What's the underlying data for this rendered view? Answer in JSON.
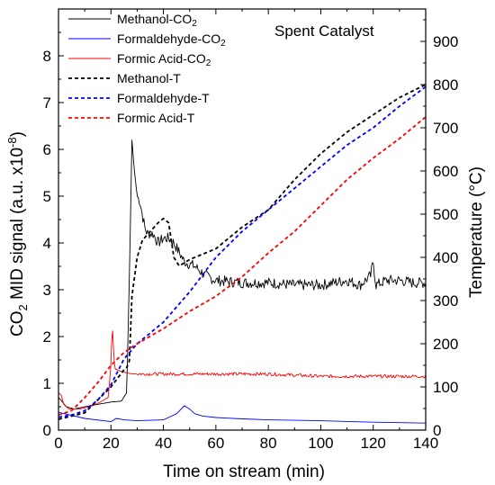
{
  "chart_data": {
    "type": "line",
    "annotation": "Spent Catalyst",
    "xlabel": "Time on stream (min)",
    "ylabel_left_main": "CO",
    "ylabel_left_sub": "2",
    "ylabel_left_rest": " MID signal (a.u. x10",
    "ylabel_left_sup": "-8",
    "ylabel_left_close": ")",
    "ylabel_right": "Temperature (°C)",
    "xlim": [
      0,
      140
    ],
    "ylim_left": [
      0,
      9
    ],
    "ylim_right": [
      0,
      975
    ],
    "x_ticks": [
      0,
      20,
      40,
      60,
      80,
      100,
      120,
      140
    ],
    "y_left_ticks": [
      0,
      1,
      2,
      3,
      4,
      5,
      6,
      7,
      8
    ],
    "y_right_ticks": [
      0,
      100,
      200,
      300,
      400,
      500,
      600,
      700,
      800,
      900
    ],
    "legend_position": "top-left",
    "series": [
      {
        "name": "Methanol-CO",
        "name_sub": "2",
        "axis": "left",
        "color": "#000000",
        "dash": "none",
        "noise": true,
        "x": [
          0,
          3,
          6,
          10,
          15,
          20,
          24,
          26,
          27,
          28,
          29,
          30,
          31,
          32,
          33,
          34,
          36,
          38,
          40,
          42,
          44,
          46,
          48,
          52,
          56,
          60,
          70,
          80,
          90,
          100,
          110,
          115,
          119,
          120,
          121,
          125,
          130,
          135,
          140
        ],
        "y": [
          0.7,
          0.5,
          0.45,
          0.5,
          0.55,
          0.6,
          0.62,
          0.8,
          3.2,
          6.2,
          5.5,
          5.0,
          4.9,
          4.6,
          4.3,
          4.2,
          4.2,
          4.0,
          4.1,
          4.1,
          4.0,
          3.8,
          3.6,
          3.5,
          3.3,
          3.2,
          3.15,
          3.15,
          3.1,
          3.1,
          3.2,
          3.1,
          3.3,
          3.6,
          3.1,
          3.2,
          3.2,
          3.15,
          3.15
        ]
      },
      {
        "name": "Formaldehyde-CO",
        "name_sub": "2",
        "axis": "left",
        "color": "#0000ff",
        "dash": "none",
        "noise": false,
        "x": [
          0,
          10,
          20,
          22,
          25,
          30,
          40,
          45,
          48,
          50,
          52,
          55,
          60,
          70,
          80,
          100,
          120,
          140
        ],
        "y": [
          0.38,
          0.25,
          0.18,
          0.25,
          0.22,
          0.2,
          0.22,
          0.35,
          0.52,
          0.45,
          0.35,
          0.3,
          0.27,
          0.24,
          0.22,
          0.2,
          0.17,
          0.15
        ]
      },
      {
        "name": "Formic Acid-CO",
        "name_sub": "2",
        "axis": "left",
        "color": "#ff0000",
        "dash": "none",
        "noise": true,
        "x": [
          0,
          1,
          2,
          4,
          8,
          12,
          16,
          19,
          20,
          20.5,
          21,
          21.5,
          22,
          24,
          28,
          30,
          40,
          60,
          80,
          100,
          120,
          140
        ],
        "y": [
          0.8,
          0.75,
          0.55,
          0.45,
          0.45,
          0.5,
          0.6,
          0.7,
          1.4,
          2.3,
          1.7,
          1.3,
          1.3,
          1.25,
          1.2,
          1.2,
          1.2,
          1.2,
          1.2,
          1.15,
          1.15,
          1.15
        ]
      },
      {
        "name": "Methanol-T",
        "name_sub": "",
        "axis": "right",
        "color": "#000000",
        "dash": "4 3",
        "noise": false,
        "x": [
          0,
          10,
          20,
          25,
          26,
          27,
          28,
          30,
          32,
          35,
          38,
          40,
          42,
          44,
          46,
          50,
          60,
          70,
          80,
          90,
          100,
          110,
          120,
          130,
          140
        ],
        "y": [
          25,
          40,
          100,
          140,
          145,
          160,
          310,
          400,
          440,
          460,
          480,
          490,
          480,
          400,
          380,
          395,
          420,
          470,
          510,
          580,
          640,
          690,
          730,
          770,
          800
        ]
      },
      {
        "name": "Formaldehyde-T",
        "name_sub": "",
        "axis": "right",
        "color": "#0000ff",
        "dash": "4 3",
        "noise": false,
        "x": [
          0,
          5,
          10,
          15,
          20,
          25,
          30,
          40,
          50,
          60,
          70,
          80,
          90,
          100,
          110,
          120,
          130,
          140
        ],
        "y": [
          30,
          35,
          45,
          70,
          105,
          165,
          200,
          250,
          320,
          400,
          460,
          510,
          560,
          610,
          660,
          700,
          750,
          795
        ]
      },
      {
        "name": "Formic Acid-T",
        "name_sub": "",
        "axis": "right",
        "color": "#ff0000",
        "dash": "4 3",
        "noise": false,
        "x": [
          0,
          5,
          10,
          15,
          20,
          25,
          30,
          40,
          50,
          60,
          70,
          80,
          90,
          100,
          110,
          120,
          130,
          140
        ],
        "y": [
          35,
          45,
          75,
          110,
          150,
          180,
          200,
          235,
          275,
          310,
          355,
          410,
          460,
          520,
          580,
          630,
          675,
          725
        ]
      }
    ]
  }
}
